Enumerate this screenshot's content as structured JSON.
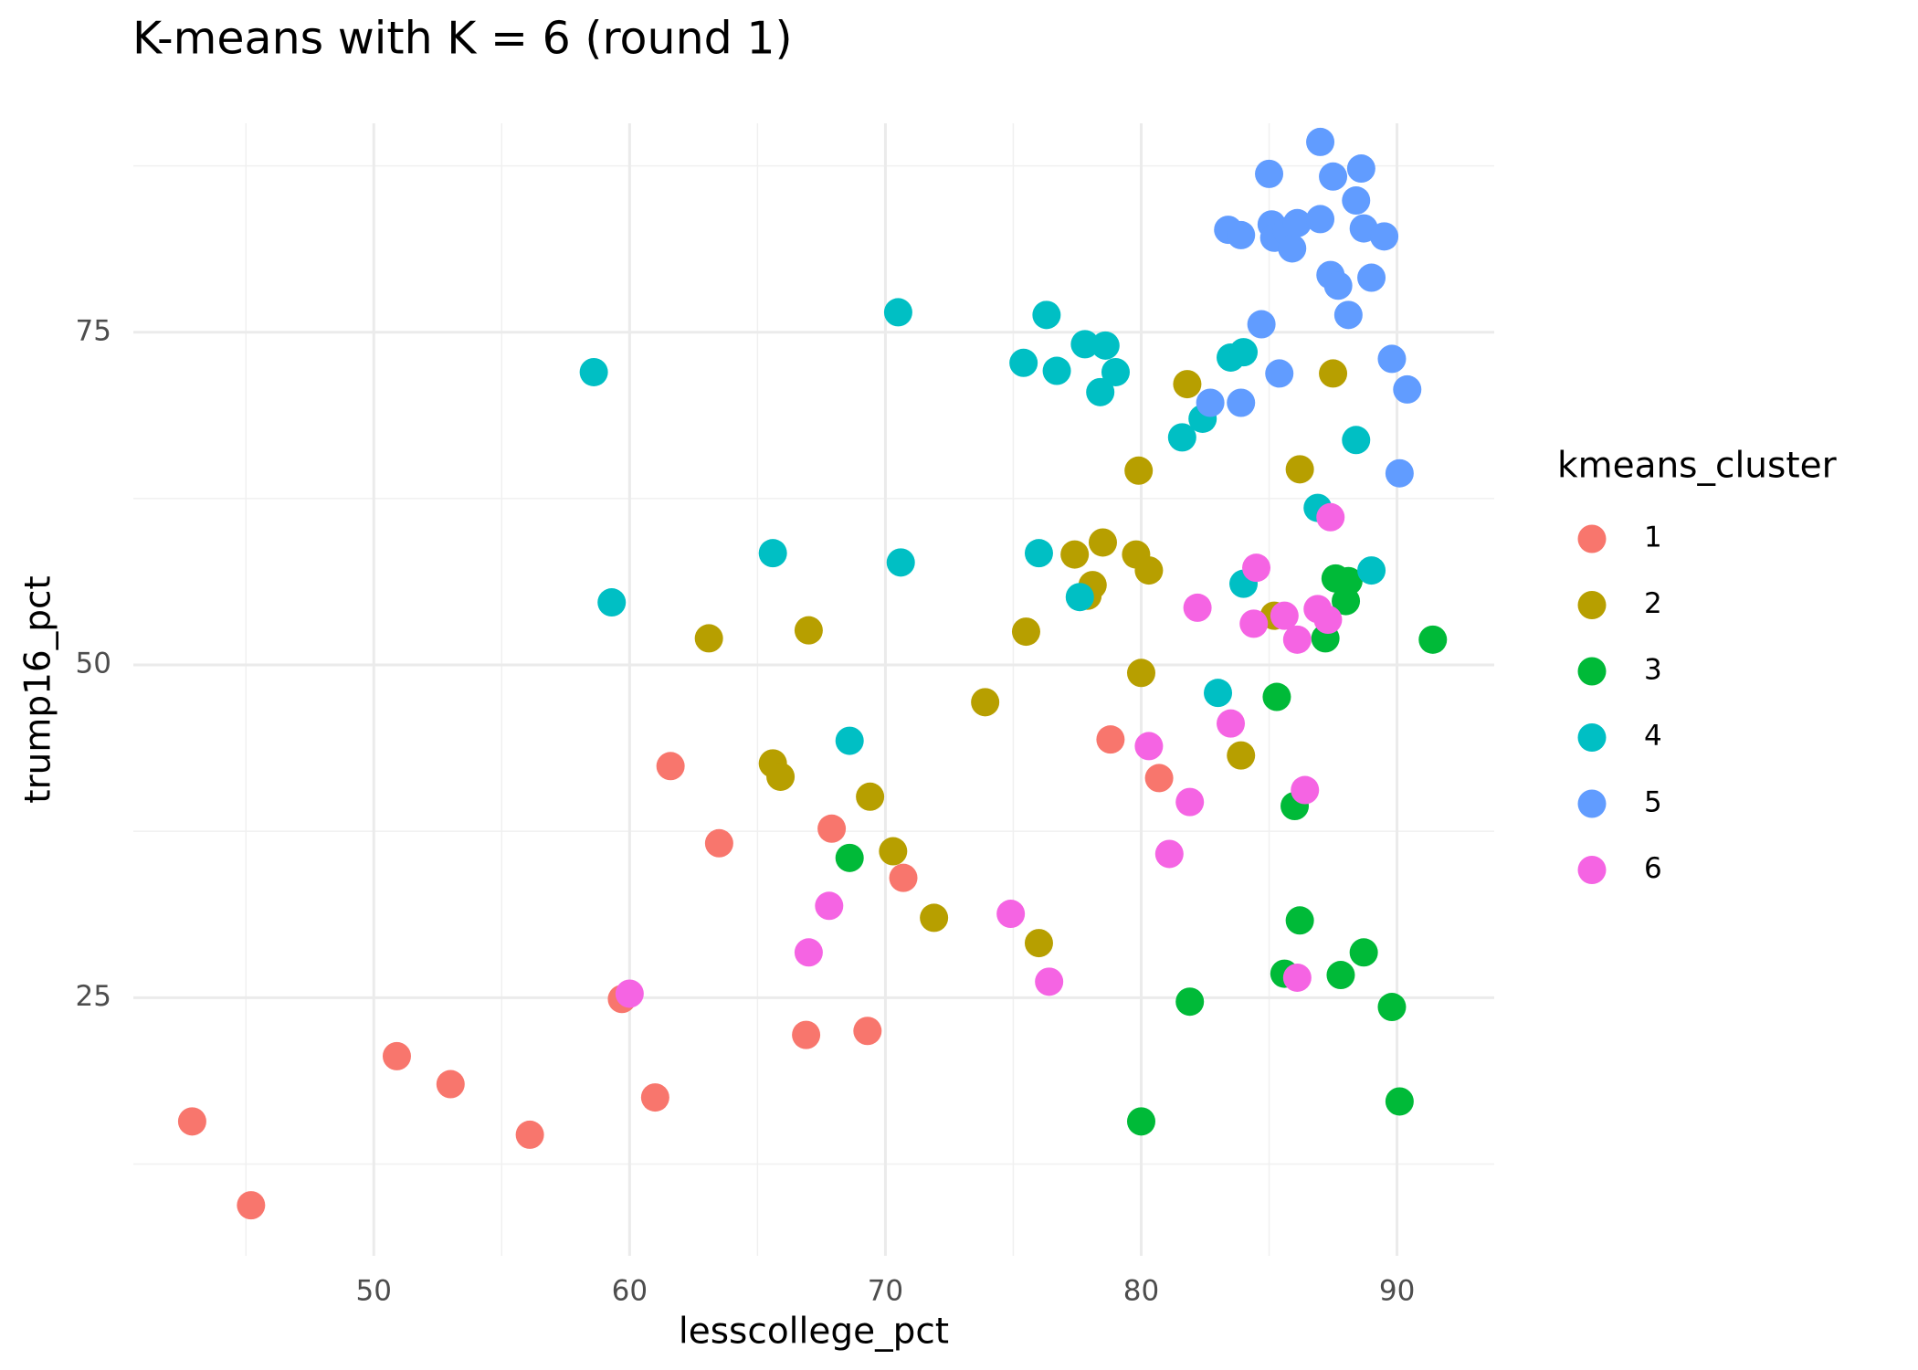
{
  "chart_data": {
    "type": "scatter",
    "title": "K-means with K = 6 (round 1)",
    "x_label": "lesscollege_pct",
    "y_label": "trump16_pct",
    "legend_title": "kmeans_cluster",
    "xlim": [
      40.6,
      93.8
    ],
    "ylim": [
      5.6,
      90.7
    ],
    "xticks": [
      50,
      60,
      70,
      80,
      90
    ],
    "yticks": [
      25,
      50,
      75
    ],
    "xminor": [
      45,
      55,
      65,
      75,
      85
    ],
    "yminor": [
      12.5,
      37.5,
      62.5,
      87.5
    ],
    "grid": true,
    "legend": "right",
    "series": [
      {
        "name": "1",
        "color": "#F8766D",
        "x": [
          42.9,
          45.2,
          50.9,
          53.0,
          56.1,
          59.7,
          61.0,
          61.6,
          63.5,
          66.9,
          67.9,
          69.3,
          70.7,
          78.8,
          80.7
        ],
        "y": [
          15.7,
          9.4,
          20.6,
          18.5,
          14.7,
          24.9,
          17.5,
          42.4,
          36.6,
          22.2,
          37.7,
          22.5,
          34.0,
          44.4,
          41.5
        ]
      },
      {
        "name": "2",
        "color": "#B79F00",
        "x": [
          63.1,
          65.6,
          65.9,
          67.0,
          69.4,
          70.3,
          71.9,
          73.9,
          75.5,
          76.0,
          77.4,
          77.9,
          78.1,
          78.5,
          79.8,
          79.9,
          80.0,
          80.3,
          81.8,
          83.9,
          85.2,
          86.2,
          87.5
        ],
        "y": [
          52.0,
          42.6,
          41.6,
          52.6,
          40.1,
          36.0,
          31.0,
          47.2,
          52.5,
          29.1,
          58.3,
          55.2,
          56.0,
          59.2,
          58.3,
          64.6,
          49.4,
          57.1,
          71.1,
          43.2,
          53.7,
          64.7,
          71.9
        ]
      },
      {
        "name": "3",
        "color": "#00BA38",
        "x": [
          68.6,
          80.0,
          81.9,
          85.3,
          85.6,
          86.0,
          86.2,
          87.2,
          87.6,
          87.8,
          88.0,
          88.1,
          88.7,
          89.8,
          90.1,
          91.4
        ],
        "y": [
          35.5,
          15.7,
          24.7,
          47.6,
          26.8,
          39.4,
          30.8,
          52.0,
          56.5,
          26.7,
          54.8,
          56.3,
          28.4,
          24.3,
          17.2,
          51.9
        ]
      },
      {
        "name": "4",
        "color": "#00BFC4",
        "x": [
          58.6,
          59.3,
          65.6,
          68.6,
          70.5,
          70.6,
          75.4,
          76.0,
          76.3,
          76.7,
          77.6,
          77.8,
          78.4,
          78.6,
          79.0,
          81.6,
          82.4,
          83.0,
          83.5,
          84.0,
          84.0,
          86.9,
          88.4,
          89.0
        ],
        "y": [
          72.0,
          54.7,
          58.4,
          44.3,
          76.5,
          57.7,
          72.7,
          58.4,
          76.3,
          72.1,
          55.1,
          74.1,
          70.5,
          74.0,
          72.0,
          67.1,
          68.5,
          47.9,
          73.1,
          56.1,
          73.5,
          61.8,
          66.9,
          57.1
        ]
      },
      {
        "name": "5",
        "color": "#619CFF",
        "x": [
          82.7,
          83.4,
          83.9,
          83.9,
          84.7,
          85.0,
          85.1,
          85.2,
          85.4,
          85.7,
          85.9,
          86.1,
          87.0,
          87.0,
          87.4,
          87.5,
          87.7,
          88.1,
          88.4,
          88.6,
          88.7,
          89.0,
          89.5,
          89.8,
          90.1,
          90.4
        ],
        "y": [
          69.7,
          82.7,
          82.3,
          69.7,
          75.6,
          86.9,
          83.1,
          82.1,
          71.9,
          82.6,
          81.3,
          83.2,
          83.5,
          89.3,
          79.3,
          86.7,
          78.5,
          76.3,
          84.9,
          87.3,
          82.8,
          79.1,
          82.2,
          73.0,
          64.4,
          70.7
        ]
      },
      {
        "name": "6",
        "color": "#F564E3",
        "x": [
          60.0,
          67.8,
          67.0,
          74.9,
          76.4,
          80.3,
          81.1,
          81.9,
          82.2,
          83.5,
          84.4,
          84.5,
          85.6,
          86.1,
          86.1,
          86.4,
          86.9,
          87.3,
          87.4
        ],
        "y": [
          25.3,
          31.9,
          28.4,
          31.3,
          26.2,
          43.9,
          35.8,
          39.7,
          54.3,
          45.6,
          53.1,
          57.3,
          53.7,
          51.9,
          26.5,
          40.6,
          54.2,
          53.4,
          61.1
        ]
      }
    ]
  }
}
